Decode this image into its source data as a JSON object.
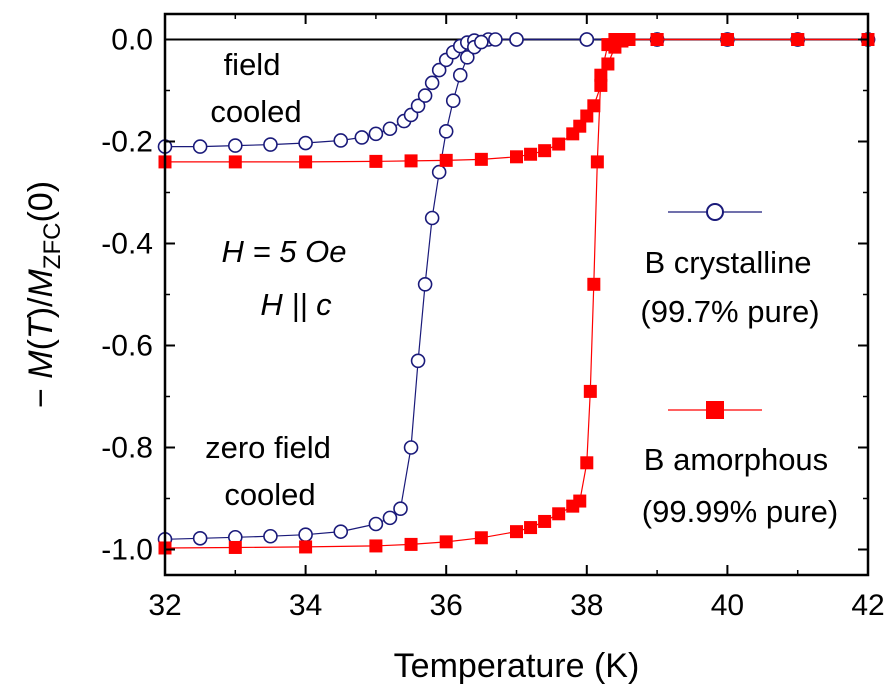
{
  "chart_data": {
    "type": "scatter",
    "title": "",
    "xlabel": "Temperature (K)",
    "ylabel": {
      "prefix": "− ",
      "m": "M",
      "open": "(",
      "t": "T",
      "close": ")/",
      "m2": "M",
      "sub": "ZFC",
      "tail": "(0)"
    },
    "xlim": [
      32,
      42
    ],
    "ylim": [
      -1.05,
      0.05
    ],
    "xticks": [
      "32",
      "34",
      "36",
      "38",
      "40",
      "42"
    ],
    "yticks": [
      "0.0",
      "-0.2",
      "-0.4",
      "-0.6",
      "-0.8",
      "-1.0"
    ],
    "xtick_values": [
      32,
      34,
      36,
      38,
      40,
      42
    ],
    "ytick_values": [
      0.0,
      -0.2,
      -0.4,
      -0.6,
      -0.8,
      -1.0
    ],
    "zero_line": 0.0,
    "legend_position": "right",
    "annotations": {
      "fc1": "field",
      "fc2": "cooled",
      "zfc1": "zero field",
      "zfc2": "cooled",
      "h_field": "H = 5 Oe",
      "h_dir": "H || c"
    },
    "series": [
      {
        "name": "B crystalline",
        "name2": "(99.7% pure)",
        "marker": "open-circle",
        "color": "#1a1a7a",
        "fc": {
          "x": [
            32.0,
            32.5,
            33.0,
            33.5,
            34.0,
            34.5,
            34.8,
            35.0,
            35.2,
            35.4,
            35.5,
            35.6,
            35.7,
            35.8,
            35.9,
            36.0,
            36.1,
            36.2,
            36.3,
            36.4,
            36.6,
            37.0,
            38.0,
            39.0,
            40.0,
            41.0,
            42.0
          ],
          "y": [
            -0.21,
            -0.21,
            -0.208,
            -0.206,
            -0.203,
            -0.198,
            -0.192,
            -0.185,
            -0.175,
            -0.16,
            -0.148,
            -0.13,
            -0.11,
            -0.085,
            -0.06,
            -0.04,
            -0.025,
            -0.013,
            -0.006,
            -0.002,
            0.0,
            0.0,
            0.0,
            0.0,
            0.0,
            0.0,
            0.0
          ]
        },
        "zfc": {
          "x": [
            32.0,
            32.5,
            33.0,
            33.5,
            34.0,
            34.5,
            35.0,
            35.2,
            35.35,
            35.5,
            35.6,
            35.7,
            35.8,
            35.9,
            36.0,
            36.1,
            36.2,
            36.3,
            36.4,
            36.5,
            36.7,
            37.0,
            38.0,
            39.0,
            40.0,
            41.0,
            42.0
          ],
          "y": [
            -0.98,
            -0.978,
            -0.976,
            -0.974,
            -0.971,
            -0.965,
            -0.95,
            -0.938,
            -0.92,
            -0.8,
            -0.63,
            -0.48,
            -0.35,
            -0.26,
            -0.18,
            -0.12,
            -0.07,
            -0.035,
            -0.015,
            -0.005,
            0.0,
            0.0,
            0.0,
            0.0,
            0.0,
            0.0,
            0.0
          ]
        }
      },
      {
        "name": "B amorphous",
        "name2": "(99.99% pure)",
        "marker": "filled-square",
        "color": "#ff0000",
        "fc": {
          "x": [
            32.0,
            33.0,
            34.0,
            35.0,
            35.5,
            36.0,
            36.5,
            37.0,
            37.2,
            37.4,
            37.6,
            37.8,
            37.9,
            38.0,
            38.1,
            38.2,
            38.3,
            38.4,
            38.5,
            38.6,
            39.0,
            40.0,
            41.0,
            42.0
          ],
          "y": [
            -0.24,
            -0.24,
            -0.24,
            -0.239,
            -0.238,
            -0.237,
            -0.235,
            -0.23,
            -0.225,
            -0.218,
            -0.205,
            -0.185,
            -0.17,
            -0.15,
            -0.13,
            -0.09,
            -0.048,
            -0.015,
            -0.003,
            0.0,
            0.0,
            0.0,
            0.0,
            0.0
          ]
        },
        "zfc": {
          "x": [
            32.0,
            33.0,
            34.0,
            35.0,
            35.5,
            36.0,
            36.5,
            37.0,
            37.2,
            37.4,
            37.6,
            37.8,
            37.9,
            38.0,
            38.05,
            38.1,
            38.15,
            38.2,
            38.3,
            38.4,
            38.5,
            38.6,
            39.0,
            40.0,
            41.0,
            42.0
          ],
          "y": [
            -0.997,
            -0.996,
            -0.995,
            -0.993,
            -0.99,
            -0.985,
            -0.977,
            -0.965,
            -0.957,
            -0.945,
            -0.93,
            -0.915,
            -0.905,
            -0.83,
            -0.69,
            -0.48,
            -0.24,
            -0.07,
            -0.01,
            0.0,
            0.0,
            0.0,
            0.0,
            0.0,
            0.0,
            0.0
          ]
        }
      }
    ]
  }
}
